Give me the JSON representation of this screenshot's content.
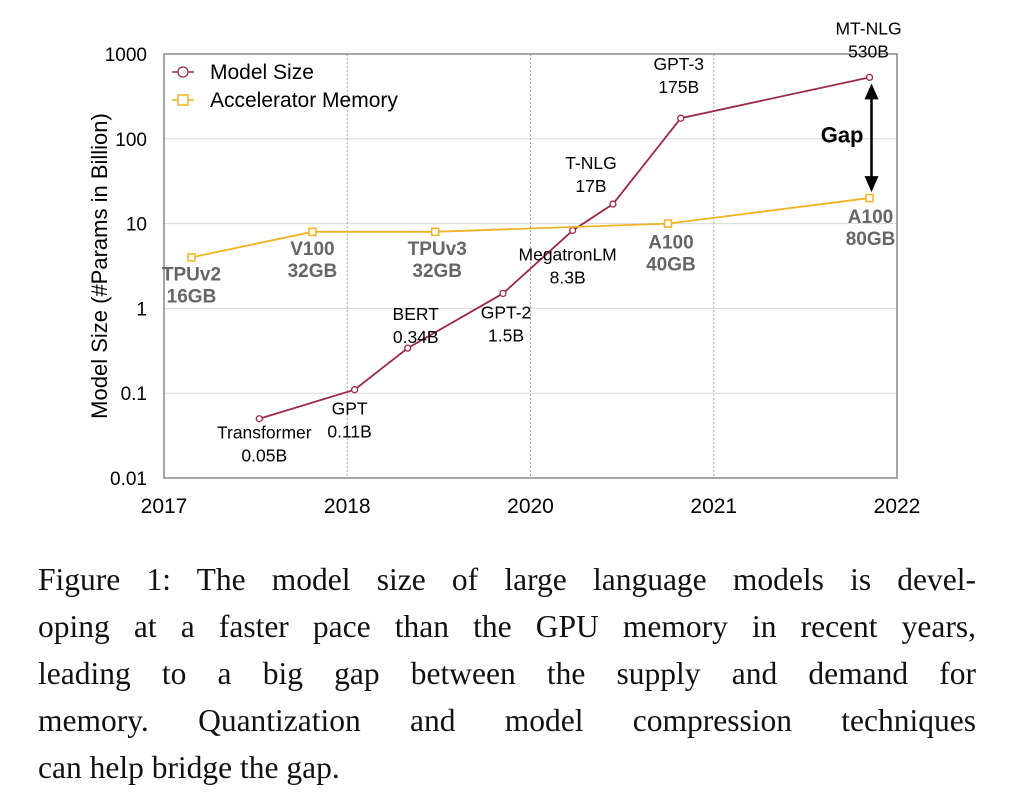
{
  "chart_data": {
    "type": "line",
    "title": "",
    "xlabel": "",
    "ylabel": "Model Size (#Params in Billion)",
    "yscale": "log",
    "ylim": [
      0.01,
      1000
    ],
    "yticks": [
      "0.01",
      "0.1",
      "1",
      "10",
      "100",
      "1000"
    ],
    "xticks": [
      "2017",
      "2018",
      "2020",
      "2021",
      "2022"
    ],
    "x_note": "x values are in tick-index units (0 = first tick label, 4 = last)",
    "xlim": [
      0,
      4
    ],
    "grid": true,
    "legend_position": "top-left",
    "series": [
      {
        "name": "Model Size",
        "color": "#9b2a46",
        "marker": "circle",
        "points": [
          {
            "x": 0.52,
            "y": 0.05,
            "label": [
              "Transformer",
              "0.05B"
            ]
          },
          {
            "x": 1.04,
            "y": 0.11,
            "label": [
              "GPT",
              "0.11B"
            ]
          },
          {
            "x": 1.33,
            "y": 0.34,
            "label": [
              "BERT",
              "0.34B"
            ]
          },
          {
            "x": 1.85,
            "y": 1.5,
            "label": [
              "GPT-2",
              "1.5B"
            ]
          },
          {
            "x": 2.23,
            "y": 8.3,
            "label": [
              "MegatronLM",
              "8.3B"
            ]
          },
          {
            "x": 2.45,
            "y": 17,
            "label": [
              "T-NLG",
              "17B"
            ]
          },
          {
            "x": 2.82,
            "y": 175,
            "label": [
              "GPT-3",
              "175B"
            ]
          },
          {
            "x": 3.85,
            "y": 530,
            "label": [
              "MT-NLG",
              "530B"
            ]
          }
        ]
      },
      {
        "name": "Accelerator Memory",
        "color": "#f0b323",
        "marker": "square",
        "points": [
          {
            "x": 0.15,
            "y": 4,
            "label": [
              "TPUv2",
              "16GB"
            ]
          },
          {
            "x": 0.81,
            "y": 8,
            "label": [
              "V100",
              "32GB"
            ]
          },
          {
            "x": 1.48,
            "y": 8,
            "label": [
              "TPUv3",
              "32GB"
            ]
          },
          {
            "x": 2.75,
            "y": 10,
            "label": [
              "A100",
              "40GB"
            ]
          },
          {
            "x": 3.85,
            "y": 20,
            "label": [
              "A100",
              "80GB"
            ]
          }
        ]
      }
    ],
    "annotations": [
      {
        "text": "Gap",
        "between": [
          530,
          20
        ],
        "x": 3.85
      }
    ]
  },
  "caption": {
    "lines": [
      "Figure 1: The model size of large language models is devel-",
      "oping at a faster pace than the GPU memory in recent years,",
      "leading to a big gap between the supply and demand for",
      "memory. Quantization and model compression techniques",
      "can help bridge the gap."
    ]
  }
}
